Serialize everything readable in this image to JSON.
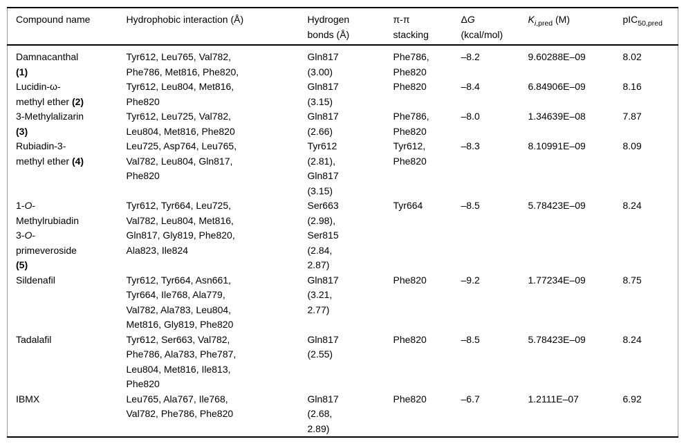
{
  "page": {
    "background_color": "#ffffff",
    "text_color": "#000000",
    "rule_color": "#000000",
    "frame_color": "#9b9b9b"
  },
  "table": {
    "columns": [
      {
        "id": "compound-name",
        "label": [
          {
            "t": "Compound name"
          }
        ]
      },
      {
        "id": "hydrophobic-interaction",
        "label": [
          {
            "t": "Hydrophobic interaction (Å)"
          }
        ]
      },
      {
        "id": "hydrogen-bonds",
        "label": [
          {
            "t": "Hydrogen"
          },
          {
            "br": 1
          },
          {
            "t": "bonds (Å)"
          }
        ]
      },
      {
        "id": "pi-pi-stacking",
        "label": [
          {
            "t": "π-π"
          },
          {
            "br": 1
          },
          {
            "t": "stacking"
          }
        ]
      },
      {
        "id": "delta-g",
        "label": [
          {
            "t": "Δ"
          },
          {
            "t": "G",
            "s": "i"
          },
          {
            "br": 1
          },
          {
            "t": "(kcal/mol)"
          }
        ]
      },
      {
        "id": "ki-pred",
        "label": [
          {
            "t": "K",
            "s": "i"
          },
          {
            "t": "i",
            "s": "isub"
          },
          {
            "t": ",pred",
            "s": "sub"
          },
          {
            "t": " (M)"
          }
        ]
      },
      {
        "id": "pic50-pred",
        "label": [
          {
            "t": "pIC"
          },
          {
            "t": "50,pred",
            "s": "sub"
          }
        ]
      }
    ],
    "rows": [
      {
        "compound": [
          {
            "t": "Damnacanthal"
          },
          {
            "br": 1
          },
          {
            "t": "(1)",
            "s": "b"
          }
        ],
        "hydrophobic": "Tyr612, Leu765, Val782,\nPhe786, Met816, Phe820,",
        "hydrogen_bonds": "Gln817\n(3.00)",
        "pi_pi": "Phe786,\nPhe820",
        "delta_g": "–8.2",
        "ki_pred": "9.60288E–09",
        "pic50_pred": "8.02"
      },
      {
        "compound": [
          {
            "t": "Lucidin-ω-"
          },
          {
            "br": 1
          },
          {
            "t": "methyl ether "
          },
          {
            "t": "(2)",
            "s": "b"
          }
        ],
        "hydrophobic": "Tyr612, Leu804, Met816,\nPhe820",
        "hydrogen_bonds": "Gln817\n(3.15)",
        "pi_pi": "Phe820",
        "delta_g": "–8.4",
        "ki_pred": "6.84906E–09",
        "pic50_pred": "8.16"
      },
      {
        "compound": [
          {
            "t": "3-Methylalizarin"
          },
          {
            "br": 1
          },
          {
            "t": "(3)",
            "s": "b"
          }
        ],
        "hydrophobic": "Tyr612, Leu725, Val782,\nLeu804, Met816, Phe820",
        "hydrogen_bonds": "Gln817\n(2.66)",
        "pi_pi": "Phe786,\nPhe820",
        "delta_g": "–8.0",
        "ki_pred": "1.34639E–08",
        "pic50_pred": "7.87"
      },
      {
        "compound": [
          {
            "t": "Rubiadin-3-"
          },
          {
            "br": 1
          },
          {
            "t": "methyl ether "
          },
          {
            "t": "(4)",
            "s": "b"
          }
        ],
        "hydrophobic": "Leu725, Asp764, Leu765,\nVal782, Leu804, Gln817,\nPhe820",
        "hydrogen_bonds": "Tyr612\n(2.81),\nGln817\n(3.15)",
        "pi_pi": "Tyr612,\nPhe820",
        "delta_g": "–8.3",
        "ki_pred": "8.10991E–09",
        "pic50_pred": "8.09"
      },
      {
        "compound": [
          {
            "t": "1-"
          },
          {
            "t": "O",
            "s": "i"
          },
          {
            "t": "-"
          },
          {
            "br": 1
          },
          {
            "t": "Methylrubiadin"
          },
          {
            "br": 1
          },
          {
            "t": "3-"
          },
          {
            "t": "O",
            "s": "i"
          },
          {
            "t": "-"
          },
          {
            "br": 1
          },
          {
            "t": "primeveroside"
          },
          {
            "br": 1
          },
          {
            "t": "(5)",
            "s": "b"
          }
        ],
        "hydrophobic": "Tyr612, Tyr664, Leu725,\nVal782, Leu804, Met816,\nGln817, Gly819, Phe820,\nAla823, Ile824",
        "hydrogen_bonds": "Ser663\n(2.98),\nSer815\n(2.84,\n2.87)",
        "pi_pi": "Tyr664",
        "delta_g": "–8.5",
        "ki_pred": "5.78423E–09",
        "pic50_pred": "8.24"
      },
      {
        "compound": [
          {
            "t": "Sildenafil"
          }
        ],
        "hydrophobic": "Tyr612, Tyr664, Asn661,\nTyr664, Ile768, Ala779,\nVal782, Ala783, Leu804,\nMet816, Gly819, Phe820",
        "hydrogen_bonds": "Gln817\n(3.21,\n2.77)",
        "pi_pi": "Phe820",
        "delta_g": "–9.2",
        "ki_pred": "1.77234E–09",
        "pic50_pred": "8.75"
      },
      {
        "compound": [
          {
            "t": "Tadalafil"
          }
        ],
        "hydrophobic": "Tyr612, Ser663, Val782,\nPhe786, Ala783, Phe787,\nLeu804, Met816, Ile813,\nPhe820",
        "hydrogen_bonds": "Gln817\n(2.55)",
        "pi_pi": "Phe820",
        "delta_g": "–8.5",
        "ki_pred": "5.78423E–09",
        "pic50_pred": "8.24"
      },
      {
        "compound": [
          {
            "t": "IBMX"
          }
        ],
        "hydrophobic": "Leu765, Ala767, Ile768,\nVal782, Phe786, Phe820",
        "hydrogen_bonds": "Gln817\n(2.68,\n2.89)",
        "pi_pi": "Phe820",
        "delta_g": "–6.7",
        "ki_pred": "1.2111E–07",
        "pic50_pred": "6.92"
      }
    ]
  }
}
